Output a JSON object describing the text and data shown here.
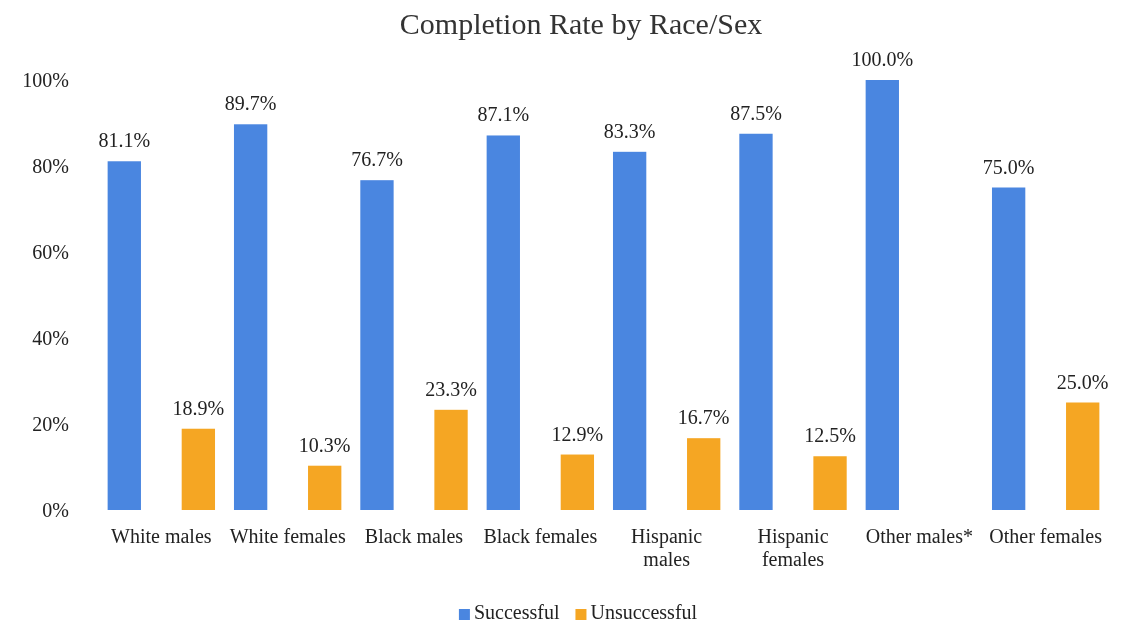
{
  "chart_data": {
    "type": "bar",
    "title": "Completion Rate by Race/Sex",
    "categories": [
      "White males",
      "White females",
      "Black males",
      "Black females",
      "Hispanic males",
      "Hispanic females",
      "Other males*",
      "Other females"
    ],
    "series": [
      {
        "name": "Successful",
        "color": "#4a86e0",
        "values": [
          81.1,
          89.7,
          76.7,
          87.1,
          83.3,
          87.5,
          100.0,
          75.0
        ],
        "value_labels": [
          "81.1%",
          "89.7%",
          "76.7%",
          "87.1%",
          "83.3%",
          "87.5%",
          "100.0%",
          "75.0%"
        ]
      },
      {
        "name": "Unsuccessful",
        "color": "#f5a623",
        "values": [
          18.9,
          10.3,
          23.3,
          12.9,
          16.7,
          12.5,
          null,
          25.0
        ],
        "value_labels": [
          "18.9%",
          "10.3%",
          "23.3%",
          "12.9%",
          "16.7%",
          "12.5%",
          null,
          "25.0%"
        ]
      }
    ],
    "ylim": [
      0,
      100
    ],
    "yticks": [
      {
        "value": 0,
        "label": "0%"
      },
      {
        "value": 20,
        "label": "20%"
      },
      {
        "value": 40,
        "label": "40%"
      },
      {
        "value": 60,
        "label": "60%"
      },
      {
        "value": 80,
        "label": "80%"
      },
      {
        "value": 100,
        "label": "100%"
      }
    ],
    "grid": false,
    "legend": "bottom"
  }
}
